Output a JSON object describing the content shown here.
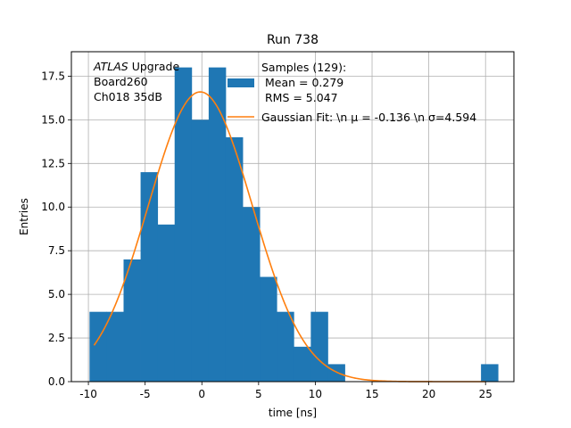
{
  "chart_data": {
    "type": "bar",
    "title": "Run 738",
    "xlabel": "time [ns]",
    "ylabel": "Entries",
    "xlim": [
      -11.5,
      27.5
    ],
    "ylim": [
      0,
      18.9
    ],
    "grid": true,
    "x_ticks": [
      "-10",
      "-5",
      "0",
      "5",
      "10",
      "15",
      "20",
      "25"
    ],
    "x_tick_values": [
      -10,
      -5,
      0,
      5,
      10,
      15,
      20,
      25
    ],
    "y_ticks": [
      "0.0",
      "2.5",
      "5.0",
      "7.5",
      "10.0",
      "12.5",
      "15.0",
      "17.5"
    ],
    "y_tick_values": [
      0,
      2.5,
      5,
      7.5,
      10,
      12.5,
      15,
      17.5
    ],
    "annotation": {
      "atlas": "ATLAS",
      "upgrade": " Upgrade",
      "board": "Board260",
      "channel": "Ch018 35dB"
    },
    "histogram": {
      "name": "Samples (129):",
      "color": "#1f77b4",
      "bin_edges": [
        -9.9,
        -8.4,
        -6.9,
        -5.4,
        -3.9,
        -2.4,
        -0.9,
        0.6,
        2.1,
        3.6,
        5.1,
        6.6,
        8.1,
        9.6,
        11.1,
        12.6,
        14.1,
        15.6,
        17.1,
        18.6,
        20.1,
        21.6,
        23.1,
        24.6,
        26.1
      ],
      "counts": [
        4,
        4,
        7,
        12,
        9,
        18,
        15,
        18,
        14,
        10,
        6,
        4,
        2,
        4,
        1,
        0,
        0,
        0,
        0,
        0,
        0,
        0,
        0,
        1
      ]
    },
    "fit": {
      "name": "Gaussian Fit",
      "color": "#ff7f0e",
      "mu": -0.136,
      "sigma": 4.594,
      "amplitude": 16.6,
      "x_range": [
        -9.5,
        25
      ]
    },
    "legend": {
      "location": "top-right",
      "entries": [
        {
          "line1": "Samples (129):",
          "line2": " Mean = 0.279",
          "line3": " RMS = 5.047"
        },
        {
          "fit_text": "Gaussian Fit: \\n μ = -0.136 \\n σ=4.594"
        }
      ]
    }
  }
}
